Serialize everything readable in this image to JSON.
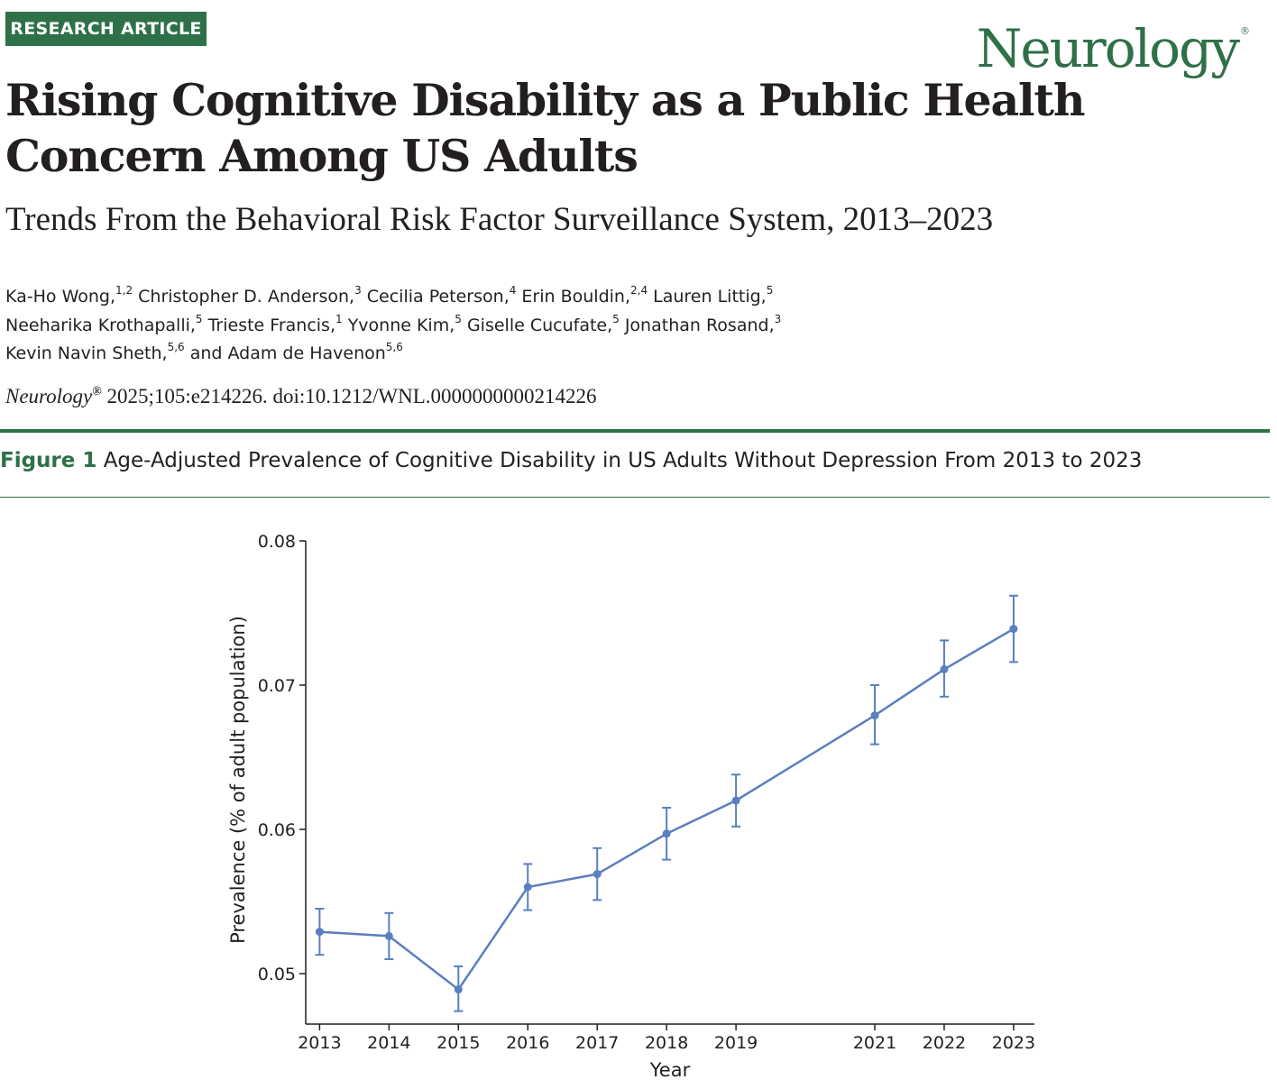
{
  "header": {
    "badge": "RESEARCH ARTICLE",
    "journal_logo": "Neurology",
    "journal_logo_mark": "®"
  },
  "article": {
    "title": "Rising Cognitive Disability as a Public Health Concern Among US Adults",
    "subtitle": "Trends From the Behavioral Risk Factor Surveillance System, 2013–2023",
    "authors": [
      {
        "name": "Ka-Ho Wong,",
        "aff": "1,2"
      },
      {
        "name": "Christopher D. Anderson,",
        "aff": "3"
      },
      {
        "name": "Cecilia Peterson,",
        "aff": "4"
      },
      {
        "name": "Erin Bouldin,",
        "aff": "2,4"
      },
      {
        "name": "Lauren Littig,",
        "aff": "5"
      },
      {
        "name": "Neeharika Krothapalli,",
        "aff": "5"
      },
      {
        "name": "Trieste Francis,",
        "aff": "1"
      },
      {
        "name": "Yvonne Kim,",
        "aff": "5"
      },
      {
        "name": "Giselle Cucufate,",
        "aff": "5"
      },
      {
        "name": "Jonathan Rosand,",
        "aff": "3"
      },
      {
        "name": "Kevin Navin Sheth,",
        "aff": "5,6"
      },
      {
        "name": "and Adam de Havenon",
        "aff": "5,6"
      }
    ],
    "citation_journal": "Neurology",
    "citation_mark": "®",
    "citation_rest": "2025;105:e214226. doi:10.1212/WNL.0000000000214226"
  },
  "figure": {
    "label": "Figure 1",
    "caption": "Age-Adjusted Prevalence of Cognitive Disability in US Adults Without Depression From 2013 to 2023"
  },
  "chart_data": {
    "type": "line",
    "title": "",
    "xlabel": "Year",
    "ylabel": "Prevalence (% of adult population)",
    "x": [
      2013,
      2014,
      2015,
      2016,
      2017,
      2018,
      2019,
      2021,
      2022,
      2023
    ],
    "x_tick_labels": [
      "2013",
      "2014",
      "2015",
      "2016",
      "2017",
      "2018",
      "2019",
      "2021",
      "2022",
      "2023"
    ],
    "series": [
      {
        "values": [
          0.0529,
          0.0526,
          0.0489,
          0.056,
          0.0569,
          0.0597,
          0.062,
          0.0679,
          0.0711,
          0.0739
        ],
        "ci_lower": [
          0.0513,
          0.051,
          0.0474,
          0.0544,
          0.0551,
          0.0579,
          0.0602,
          0.0659,
          0.0692,
          0.0716
        ],
        "ci_upper": [
          0.0545,
          0.0542,
          0.0505,
          0.0576,
          0.0587,
          0.0615,
          0.0638,
          0.07,
          0.0731,
          0.0762
        ]
      }
    ],
    "y_ticks": [
      0.05,
      0.06,
      0.07,
      0.08
    ],
    "y_tick_labels": [
      "0.05",
      "0.06",
      "0.07",
      "0.08"
    ],
    "xlim": [
      2012.8,
      2023.3
    ],
    "ylim": [
      0.0465,
      0.08
    ],
    "grid": false,
    "legend": "none",
    "colors": {
      "line": "#5a7fbf",
      "axis": "#231f20"
    }
  }
}
